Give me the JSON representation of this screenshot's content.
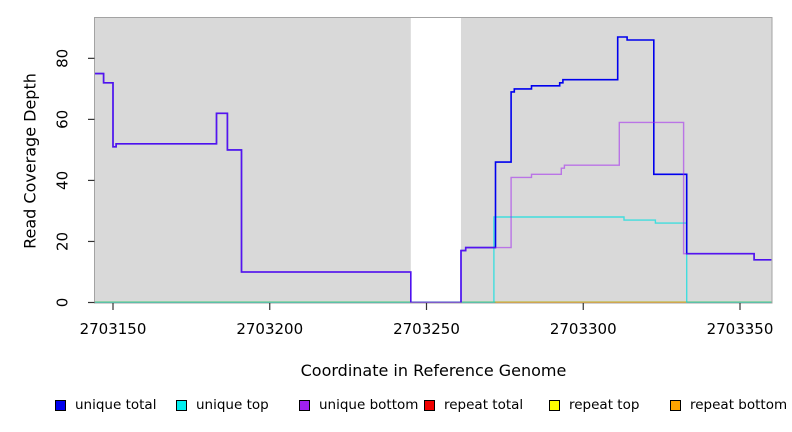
{
  "chart_data": {
    "type": "line",
    "subtype": "step-coverage-plot",
    "title": "",
    "xlabel": "Coordinate in Reference Genome",
    "ylabel": "Read Coverage Depth",
    "x_ticks": [
      2703150,
      2703200,
      2703250,
      2703300,
      2703350
    ],
    "y_ticks": [
      0,
      20,
      40,
      60,
      80
    ],
    "x_range": [
      2703144,
      2703360
    ],
    "y_range": [
      0,
      93
    ],
    "grid": false,
    "plot_background": "#d9d9d9",
    "figure_background": "#ffffff",
    "border_color": "#a3a3a3",
    "tick_color": "#333333",
    "mask_region": {
      "from": 2703245,
      "to": 2703261,
      "color": "#ffffff"
    },
    "baseline": {
      "color": "#46c546",
      "value": 0
    },
    "series": [
      {
        "name": "unique total",
        "color": "#0000ee",
        "opacity": 1,
        "width": 1.6,
        "points": [
          [
            2703144,
            75
          ],
          [
            2703147,
            72
          ],
          [
            2703150,
            51
          ],
          [
            2703151,
            52
          ],
          [
            2703183,
            62
          ],
          [
            2703186.5,
            50
          ],
          [
            2703191,
            10
          ],
          [
            2703245,
            0
          ],
          [
            2703261,
            17
          ],
          [
            2703262.5,
            18
          ],
          [
            2703272,
            46
          ],
          [
            2703277,
            69
          ],
          [
            2703278,
            70
          ],
          [
            2703283.5,
            71
          ],
          [
            2703292.5,
            72
          ],
          [
            2703293.5,
            73
          ],
          [
            2703311,
            87
          ],
          [
            2703314,
            86
          ],
          [
            2703322.5,
            42
          ],
          [
            2703333,
            16
          ],
          [
            2703354.5,
            14
          ],
          [
            2703360,
            14
          ]
        ]
      },
      {
        "name": "unique top",
        "color": "#00e0e0",
        "opacity": 0.7,
        "width": 1.4,
        "points": [
          [
            2703144,
            0
          ],
          [
            2703271.5,
            28
          ],
          [
            2703313,
            27
          ],
          [
            2703323,
            26
          ],
          [
            2703333,
            0
          ],
          [
            2703360,
            0
          ]
        ]
      },
      {
        "name": "unique bottom",
        "color": "#a020f0",
        "opacity": 0.55,
        "width": 1.4,
        "points": [
          [
            2703144,
            75
          ],
          [
            2703147,
            72
          ],
          [
            2703150,
            51
          ],
          [
            2703151,
            52
          ],
          [
            2703183,
            62
          ],
          [
            2703186.5,
            50
          ],
          [
            2703191,
            10
          ],
          [
            2703245,
            0
          ],
          [
            2703261,
            17
          ],
          [
            2703262.5,
            18
          ],
          [
            2703277,
            41
          ],
          [
            2703283.5,
            42
          ],
          [
            2703293,
            44
          ],
          [
            2703294,
            45
          ],
          [
            2703311.5,
            59
          ],
          [
            2703332,
            16
          ],
          [
            2703354.5,
            14
          ],
          [
            2703360,
            14
          ]
        ]
      },
      {
        "name": "repeat total",
        "color": "#ff0000",
        "opacity": 1,
        "width": 1.5,
        "points": [
          [
            2703144,
            0
          ],
          [
            2703360,
            0
          ]
        ]
      },
      {
        "name": "repeat top",
        "color": "#ffff00",
        "opacity": 1,
        "width": 1.5,
        "points": [
          [
            2703144,
            0
          ],
          [
            2703360,
            0
          ]
        ]
      },
      {
        "name": "repeat bottom",
        "color": "#ffa500",
        "opacity": 1,
        "width": 1.6,
        "points": [
          [
            2703272,
            0
          ],
          [
            2703333,
            0
          ]
        ]
      }
    ],
    "legend": [
      {
        "label": "unique total",
        "color": "#0000ee"
      },
      {
        "label": "unique top",
        "color": "#00eeee"
      },
      {
        "label": "unique bottom",
        "color": "#a020f0"
      },
      {
        "label": "repeat total",
        "color": "#f00000"
      },
      {
        "label": "repeat top",
        "color": "#ffff00"
      },
      {
        "label": "repeat bottom",
        "color": "#ffa500"
      }
    ],
    "legend_position": "bottom"
  }
}
